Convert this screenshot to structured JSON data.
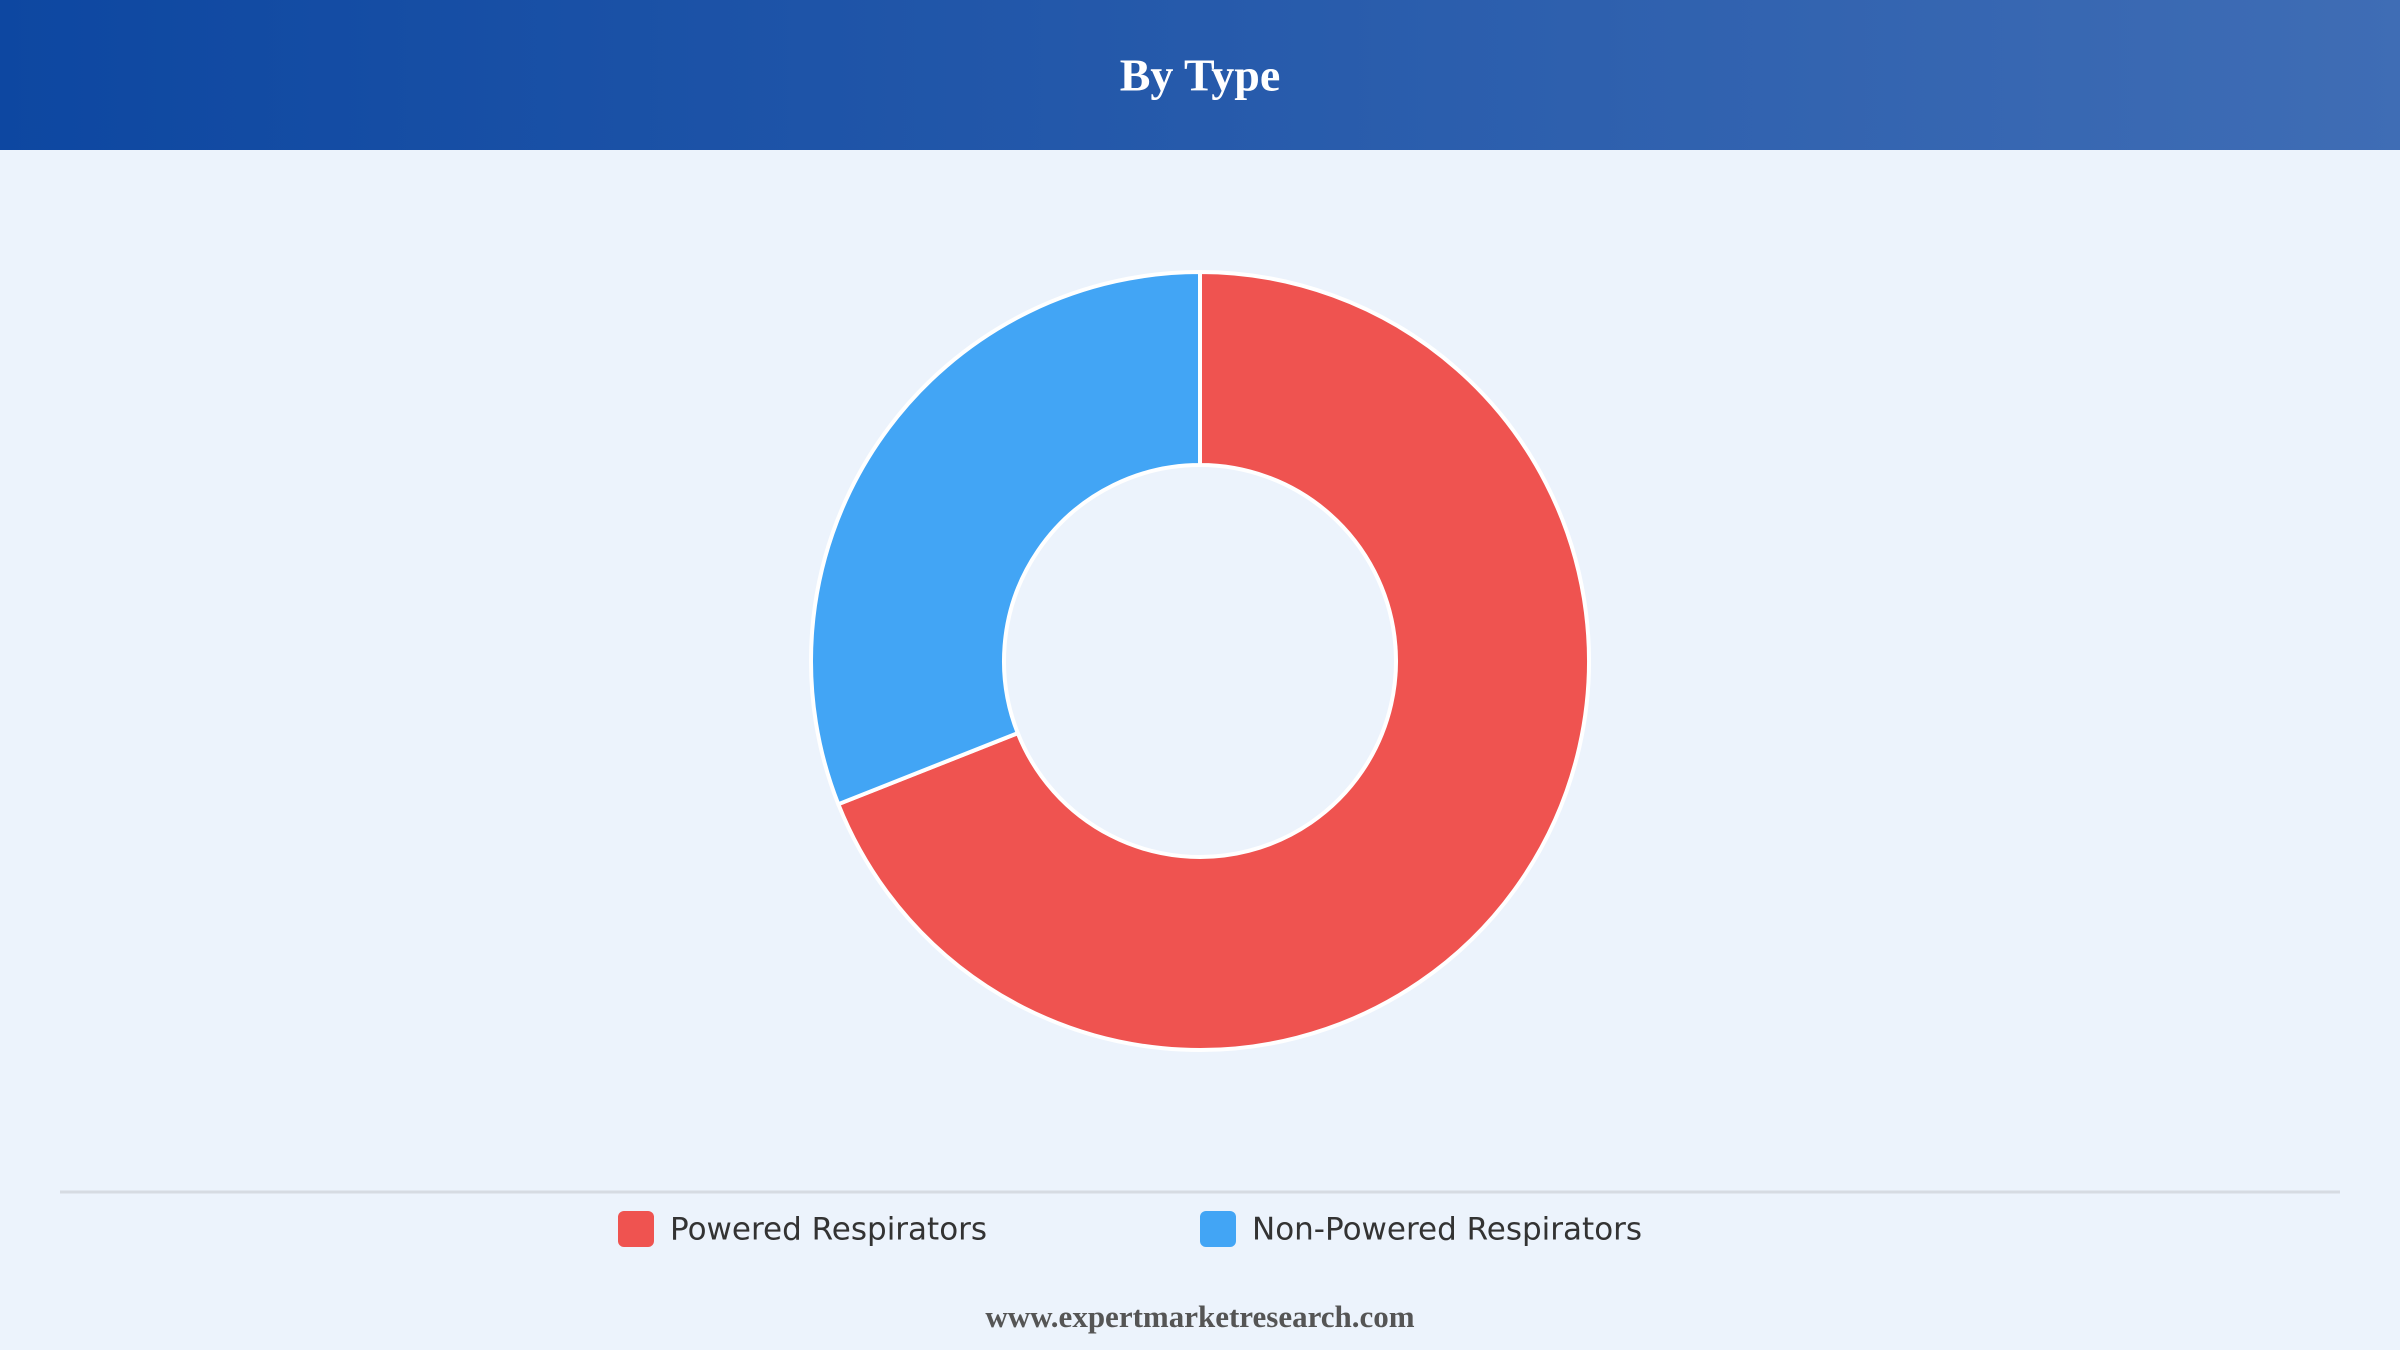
{
  "chart_data": {
    "type": "donut",
    "title": "By Type",
    "categories": [
      "Powered Respirators",
      "Non-Powered Respirators"
    ],
    "values": [
      69,
      31
    ],
    "colors": [
      "#ef5350",
      "#42a5f5"
    ]
  },
  "footer": "www.expertmarketresearch.com"
}
